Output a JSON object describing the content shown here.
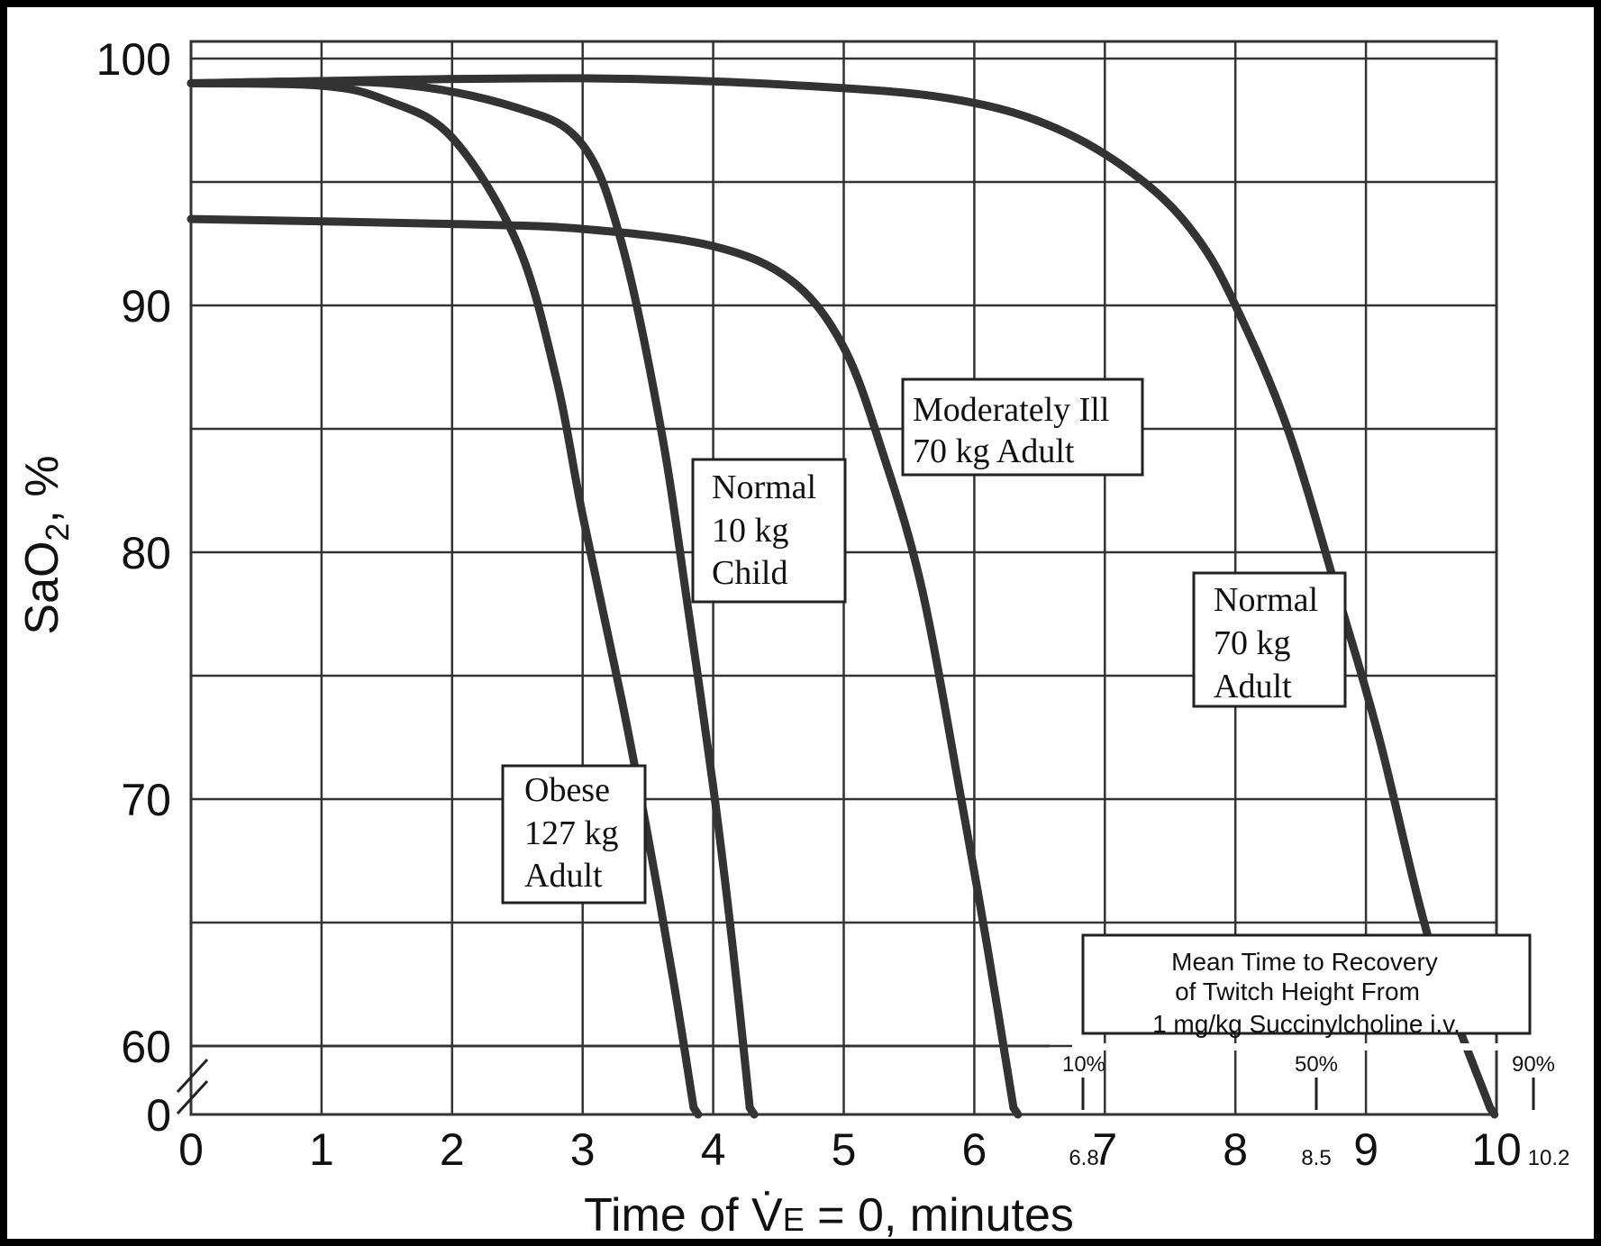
{
  "chart_data": {
    "type": "line",
    "title": "",
    "xlabel_prefix": "Time of ",
    "xlabel_symbol": "V̇",
    "xlabel_sub": "E",
    "xlabel_suffix": " = 0, minutes",
    "ylabel_main": "SaO",
    "ylabel_sub": "2",
    "ylabel_suffix": ", %",
    "xlim": [
      0,
      10
    ],
    "y_ticks": [
      "100",
      "90",
      "80",
      "70",
      "60",
      "0"
    ],
    "x_ticks": [
      "0",
      "1",
      "2",
      "3",
      "4",
      "5",
      "6",
      "7",
      "8",
      "9",
      "10"
    ],
    "grid": true,
    "series": [
      {
        "name": "Obese\n127 kg\nAdult",
        "points": [
          [
            0,
            99
          ],
          [
            1,
            98.9
          ],
          [
            1.5,
            98.3
          ],
          [
            2,
            96.8
          ],
          [
            2.5,
            92.5
          ],
          [
            2.8,
            87
          ],
          [
            3.0,
            81.5
          ],
          [
            3.3,
            74
          ],
          [
            3.5,
            68.5
          ],
          [
            3.7,
            62.5
          ],
          [
            3.85,
            57.5
          ]
        ]
      },
      {
        "name": "Normal\n10 kg\nChild",
        "points": [
          [
            0,
            99
          ],
          [
            1.5,
            99
          ],
          [
            2.5,
            98
          ],
          [
            3.0,
            96.5
          ],
          [
            3.3,
            92.5
          ],
          [
            3.6,
            85
          ],
          [
            3.8,
            78
          ],
          [
            4.0,
            70.5
          ],
          [
            4.15,
            64
          ],
          [
            4.28,
            57.5
          ]
        ]
      },
      {
        "name": "Moderately Ill\n70 kg Adult",
        "points": [
          [
            0,
            93.5
          ],
          [
            2,
            93.3
          ],
          [
            3,
            93.1
          ],
          [
            4,
            92.4
          ],
          [
            4.6,
            91
          ],
          [
            5.0,
            88.3
          ],
          [
            5.3,
            84
          ],
          [
            5.6,
            78.5
          ],
          [
            5.9,
            70
          ],
          [
            6.1,
            64
          ],
          [
            6.3,
            57.5
          ]
        ]
      },
      {
        "name": "Normal\n70 kg\nAdult",
        "points": [
          [
            0,
            99
          ],
          [
            3,
            99.2
          ],
          [
            5,
            98.8
          ],
          [
            6,
            98.2
          ],
          [
            6.7,
            97
          ],
          [
            7.3,
            95
          ],
          [
            7.7,
            92.8
          ],
          [
            8.0,
            90
          ],
          [
            8.4,
            85
          ],
          [
            8.8,
            78
          ],
          [
            9.1,
            72.5
          ],
          [
            9.5,
            64
          ],
          [
            9.95,
            57.5
          ]
        ]
      }
    ],
    "annotation": {
      "text_lines": [
        "Mean Time to Recovery",
        "of Twitch Height From",
        "1 mg/kg Succinylcholine i.v."
      ],
      "scale_labels": [
        "10%",
        "50%",
        "90%"
      ],
      "scale_values": [
        "6.8",
        "8.5",
        "10.2"
      ]
    }
  }
}
